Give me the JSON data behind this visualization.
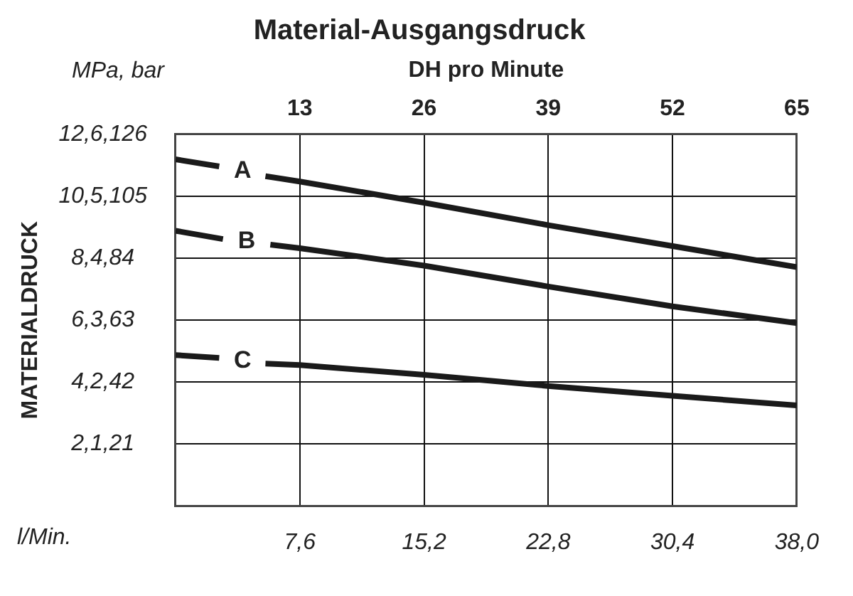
{
  "chart_data": {
    "type": "line",
    "title": "Material-Ausgangsdruck",
    "ylabel": "MATERIALDRUCK",
    "xlabel": "l/Min.",
    "x2label": "DH pro Minute",
    "annotations": [
      "MPa, bar"
    ],
    "xlim": [
      0,
      38
    ],
    "xticks": [
      {
        "value": 7.6,
        "label": "7,6"
      },
      {
        "value": 15.2,
        "label": "15,2"
      },
      {
        "value": 22.8,
        "label": "22,8"
      },
      {
        "value": 30.4,
        "label": "30,4"
      },
      {
        "value": 38,
        "label": "38,0"
      }
    ],
    "x2lim": [
      0,
      65
    ],
    "x2ticks": [
      13,
      26,
      39,
      52,
      65
    ],
    "ylim": [
      0,
      12.6
    ],
    "yticks": [
      {
        "value": 0,
        "label": null
      },
      {
        "value": 2.1,
        "label": "2,1,"
      },
      {
        "value": 4.2,
        "label": "4,2,"
      },
      {
        "value": 6.3,
        "label": "6,3,"
      },
      {
        "value": 8.4,
        "label": "8,4,"
      },
      {
        "value": 10.5,
        "label": "10,5,"
      },
      {
        "value": 12.6,
        "label": "12,6,"
      }
    ],
    "y2lim": [
      0,
      126
    ],
    "y2ticks": [
      21,
      42,
      63,
      84,
      105,
      126
    ],
    "grid": true,
    "series": [
      {
        "name": "A",
        "color": "#1a1a1a",
        "x": [
          0,
          2.67,
          4.1,
          5.5,
          7.6,
          15.2,
          22.8,
          30.4,
          38
        ],
        "values": [
          11.75,
          11.51,
          null,
          11.18,
          11.0,
          10.28,
          9.52,
          8.81,
          8.1
        ]
      },
      {
        "name": "B",
        "color": "#1a1a1a",
        "x": [
          0,
          2.9,
          4.35,
          5.8,
          7.6,
          15.2,
          22.8,
          30.4,
          38
        ],
        "values": [
          9.33,
          9.05,
          null,
          8.86,
          8.74,
          8.15,
          7.44,
          6.77,
          6.2
        ]
      },
      {
        "name": "C",
        "color": "#1a1a1a",
        "x": [
          0,
          2.67,
          4.1,
          5.5,
          7.6,
          15.2,
          22.8,
          30.4,
          38
        ],
        "values": [
          5.12,
          5.02,
          null,
          4.83,
          4.78,
          4.45,
          4.07,
          3.74,
          3.41
        ]
      }
    ]
  }
}
